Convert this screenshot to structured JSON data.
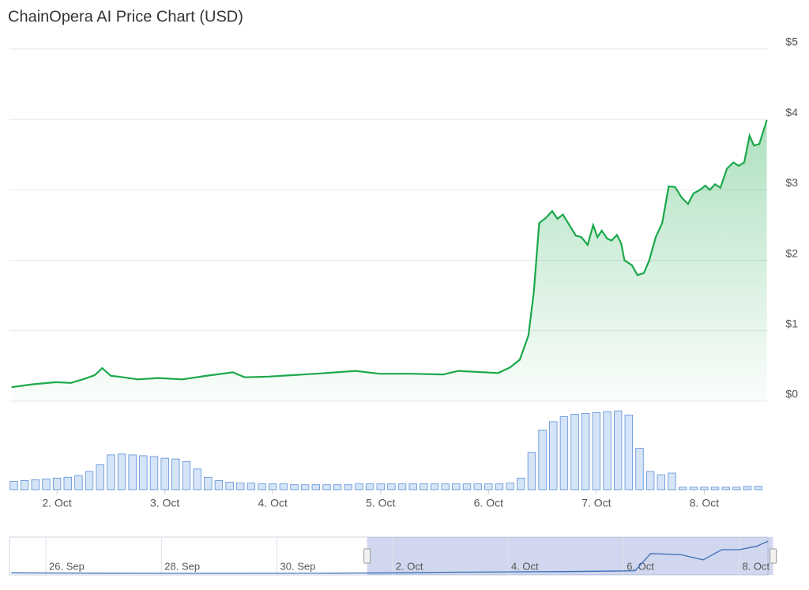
{
  "chart_data": [
    {
      "type": "area",
      "title": "ChainOpera AI Price Chart (USD)",
      "color": "#1aa84a",
      "xlim": [
        1.56,
        8.59
      ],
      "ylim": [
        0,
        5
      ],
      "yticks": [
        {
          "value": 0,
          "label": "$0"
        },
        {
          "value": 1,
          "label": "$1"
        },
        {
          "value": 2,
          "label": "$2"
        },
        {
          "value": 3,
          "label": "$3"
        },
        {
          "value": 4,
          "label": "$4"
        },
        {
          "value": 5,
          "label": "$5"
        }
      ],
      "grid": true,
      "x": [
        1.58,
        1.77,
        1.99,
        2.13,
        2.24,
        2.35,
        2.42,
        2.5,
        2.57,
        2.75,
        2.94,
        3.16,
        3.38,
        3.63,
        3.74,
        3.96,
        4.18,
        4.4,
        4.77,
        4.99,
        5.28,
        5.58,
        5.72,
        6.09,
        6.2,
        6.29,
        6.37,
        6.42,
        6.47,
        6.53,
        6.59,
        6.64,
        6.69,
        6.75,
        6.81,
        6.86,
        6.92,
        6.97,
        7.01,
        7.05,
        7.1,
        7.14,
        7.19,
        7.23,
        7.26,
        7.33,
        7.38,
        7.44,
        7.49,
        7.55,
        7.61,
        7.67,
        7.73,
        7.79,
        7.85,
        7.9,
        7.96,
        8.01,
        8.05,
        8.1,
        8.15,
        8.21,
        8.27,
        8.32,
        8.37,
        8.42,
        8.46,
        8.51,
        8.58
      ],
      "values": [
        0.2,
        0.24,
        0.27,
        0.26,
        0.31,
        0.37,
        0.47,
        0.36,
        0.35,
        0.31,
        0.33,
        0.31,
        0.36,
        0.41,
        0.34,
        0.35,
        0.37,
        0.39,
        0.43,
        0.39,
        0.39,
        0.38,
        0.43,
        0.4,
        0.48,
        0.59,
        0.93,
        1.55,
        2.53,
        2.6,
        2.7,
        2.59,
        2.65,
        2.5,
        2.35,
        2.33,
        2.22,
        2.5,
        2.33,
        2.42,
        2.31,
        2.28,
        2.36,
        2.24,
        2.0,
        1.93,
        1.79,
        1.82,
        2.0,
        2.33,
        2.53,
        3.05,
        3.04,
        2.89,
        2.8,
        2.95,
        3.0,
        3.06,
        3.0,
        3.08,
        3.03,
        3.3,
        3.39,
        3.34,
        3.39,
        3.77,
        3.63,
        3.65,
        3.99
      ]
    },
    {
      "type": "bar",
      "color": "#5b8fd6",
      "xlim": [
        1.56,
        8.59
      ],
      "ylim": [
        0,
        100
      ],
      "xticks": [
        {
          "value": 2,
          "label": "2. Oct"
        },
        {
          "value": 3,
          "label": "3. Oct"
        },
        {
          "value": 4,
          "label": "4. Oct"
        },
        {
          "value": 5,
          "label": "5. Oct"
        },
        {
          "value": 6,
          "label": "6. Oct"
        },
        {
          "value": 7,
          "label": "7. Oct"
        },
        {
          "value": 8,
          "label": "8. Oct"
        }
      ],
      "x": [
        1.6,
        1.7,
        1.8,
        1.9,
        2.0,
        2.1,
        2.2,
        2.3,
        2.4,
        2.5,
        2.6,
        2.7,
        2.8,
        2.9,
        3.0,
        3.1,
        3.2,
        3.3,
        3.4,
        3.5,
        3.6,
        3.7,
        3.8,
        3.9,
        4.0,
        4.1,
        4.2,
        4.3,
        4.4,
        4.5,
        4.6,
        4.7,
        4.8,
        4.9,
        5.0,
        5.1,
        5.2,
        5.3,
        5.4,
        5.5,
        5.6,
        5.7,
        5.8,
        5.9,
        6.0,
        6.1,
        6.2,
        6.3,
        6.4,
        6.5,
        6.6,
        6.7,
        6.8,
        6.9,
        7.0,
        7.1,
        7.2,
        7.3,
        7.4,
        7.5,
        7.6,
        7.7,
        7.8,
        7.9,
        8.0,
        8.1,
        8.2,
        8.3,
        8.4,
        8.5
      ],
      "values": [
        10,
        11,
        12,
        13,
        14,
        15,
        17,
        22,
        30,
        42,
        43,
        42,
        41,
        40,
        38,
        37,
        34,
        25,
        15,
        11,
        9,
        8,
        8,
        7,
        7,
        7,
        6,
        6,
        6,
        6,
        6,
        6,
        7,
        7,
        7,
        7,
        7,
        7,
        7,
        7,
        7,
        7,
        7,
        7,
        7,
        7,
        8,
        14,
        45,
        72,
        82,
        88,
        91,
        92,
        93,
        94,
        95,
        90,
        50,
        22,
        18,
        20,
        3,
        3,
        3,
        3,
        3,
        3,
        4,
        4
      ]
    },
    {
      "type": "line",
      "color": "#3d6fb8",
      "xlim": [
        -4.63,
        8.5
      ],
      "ylim": [
        0,
        4.5
      ],
      "xticks": [
        {
          "value": -4,
          "label": "26. Sep"
        },
        {
          "value": -2,
          "label": "28. Sep"
        },
        {
          "value": 0,
          "label": "30. Sep"
        },
        {
          "value": 2,
          "label": "2. Oct"
        },
        {
          "value": 4,
          "label": "4. Oct"
        },
        {
          "value": 6,
          "label": "6. Oct"
        },
        {
          "value": 8,
          "label": "8. Oct"
        }
      ],
      "x": [
        -4.6,
        -3,
        -1,
        1,
        2,
        3,
        5,
        6.2,
        6.47,
        7,
        7.38,
        7.7,
        8.0,
        8.3,
        8.5
      ],
      "values": [
        0.25,
        0.22,
        0.2,
        0.22,
        0.25,
        0.33,
        0.4,
        0.5,
        2.55,
        2.4,
        1.8,
        3.0,
        3.0,
        3.4,
        4.0
      ]
    }
  ]
}
